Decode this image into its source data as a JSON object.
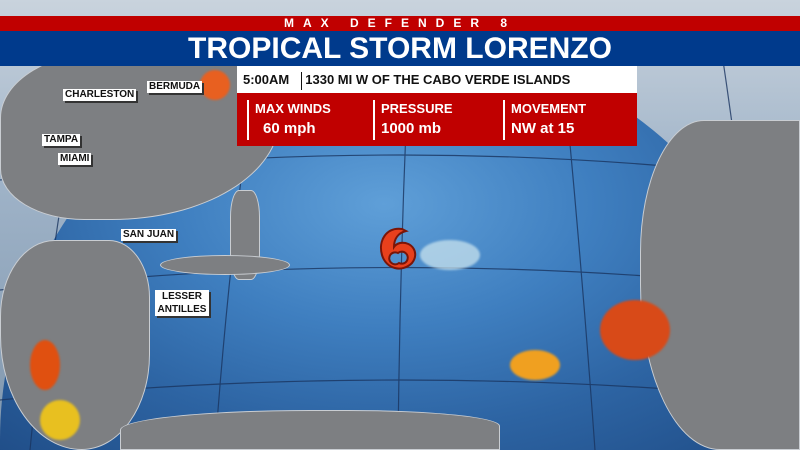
{
  "header": {
    "network": "MAX DEFENDER 8",
    "title": "TROPICAL STORM LORENZO"
  },
  "info": {
    "time": "5:00AM",
    "location": "1330 MI W OF THE CABO VERDE ISLANDS"
  },
  "stats": [
    {
      "label": "MAX WINDS",
      "value": "60 mph"
    },
    {
      "label": "PRESSURE",
      "value": "1000 mb"
    },
    {
      "label": "MOVEMENT",
      "value": "NW at 15"
    }
  ],
  "map": {
    "labels": [
      "CHARLESTON",
      "BERMUDA",
      "TAMPA",
      "MIAMI",
      "SAN JUAN",
      "LESSER ANTILLES"
    ],
    "storm_icon": "tropical-storm-icon",
    "colors": {
      "banner_red": "#c00000",
      "banner_blue": "#003a8c",
      "storm_icon": "#e8401c"
    }
  }
}
